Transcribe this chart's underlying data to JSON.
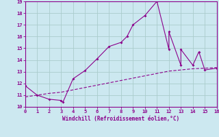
{
  "xlabel": "Windchill (Refroidissement éolien,°C)",
  "xlim": [
    0,
    16
  ],
  "ylim": [
    10,
    19
  ],
  "xticks": [
    0,
    1,
    2,
    3,
    4,
    5,
    6,
    7,
    8,
    9,
    10,
    11,
    12,
    13,
    14,
    15,
    16
  ],
  "yticks": [
    10,
    11,
    12,
    13,
    14,
    15,
    16,
    17,
    18,
    19
  ],
  "line_color": "#8b008b",
  "bg_color": "#cce8f0",
  "grid_color": "#aacccc",
  "line1_x": [
    0,
    1,
    2,
    3,
    3.15,
    4,
    5,
    6,
    7,
    8,
    8.5,
    9,
    10,
    11,
    12,
    12,
    13,
    13,
    14,
    14.5,
    15,
    16
  ],
  "line1_y": [
    11.8,
    11.0,
    10.65,
    10.55,
    10.4,
    12.4,
    13.1,
    14.1,
    15.15,
    15.5,
    16.0,
    17.0,
    17.8,
    19.0,
    14.9,
    16.4,
    13.55,
    14.9,
    13.55,
    14.7,
    13.15,
    13.3
  ],
  "line2_x": [
    0,
    1,
    2,
    3,
    4,
    5,
    6,
    7,
    8,
    9,
    10,
    11,
    12,
    13,
    14,
    15,
    16
  ],
  "line2_y": [
    10.85,
    11.0,
    11.15,
    11.25,
    11.45,
    11.65,
    11.85,
    12.05,
    12.25,
    12.45,
    12.65,
    12.85,
    13.05,
    13.15,
    13.25,
    13.3,
    13.35
  ]
}
